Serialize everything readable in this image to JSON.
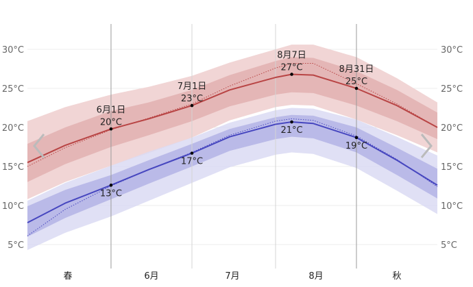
{
  "chart_data": {
    "type": "area",
    "unit": "°C",
    "x_range": [
      "2024-05-01",
      "2024-09-30"
    ],
    "ylim": [
      3,
      33
    ],
    "y_ticks": [
      5,
      10,
      15,
      20,
      25,
      30
    ],
    "y_tick_labels": [
      "5°C",
      "10°C",
      "15°C",
      "20°C",
      "25°C",
      "30°C"
    ],
    "grid": true,
    "x_labels": [
      {
        "label": "春",
        "date": "2024-05-16"
      },
      {
        "label": "6月",
        "date": "2024-06-16"
      },
      {
        "label": "7月",
        "date": "2024-07-16"
      },
      {
        "label": "8月",
        "date": "2024-08-16"
      },
      {
        "label": "秋",
        "date": "2024-09-15"
      }
    ],
    "vertical_lines": [
      {
        "date": "2024-06-01",
        "strong": true
      },
      {
        "date": "2024-07-01",
        "strong": false
      },
      {
        "date": "2024-08-01",
        "strong": false
      },
      {
        "date": "2024-08-31",
        "strong": true
      }
    ],
    "dates": [
      "2024-05-01",
      "2024-05-15",
      "2024-06-01",
      "2024-06-15",
      "2024-07-01",
      "2024-07-15",
      "2024-08-01",
      "2024-08-07",
      "2024-08-15",
      "2024-08-31",
      "2024-09-15",
      "2024-09-30"
    ],
    "high": {
      "mean": [
        15.5,
        17.7,
        19.8,
        21.1,
        22.8,
        24.8,
        26.4,
        26.8,
        26.7,
        25.0,
        22.8,
        20.0
      ],
      "perceived": [
        15.0,
        17.4,
        19.7,
        21.2,
        23.0,
        25.3,
        27.6,
        28.2,
        28.2,
        25.6,
        23.0,
        20.0
      ],
      "p10": [
        10.8,
        13.0,
        15.1,
        16.7,
        18.7,
        20.9,
        22.6,
        22.9,
        22.8,
        21.0,
        19.0,
        16.8
      ],
      "p25": [
        13.0,
        15.3,
        17.5,
        19.0,
        20.8,
        22.7,
        24.2,
        24.5,
        24.4,
        22.8,
        20.8,
        18.5
      ],
      "p75": [
        17.9,
        20.0,
        22.1,
        23.2,
        24.8,
        26.7,
        28.5,
        29.0,
        28.9,
        27.2,
        24.8,
        21.9
      ],
      "p90": [
        20.8,
        22.6,
        24.2,
        25.2,
        26.6,
        28.3,
        30.0,
        30.6,
        30.6,
        29.0,
        26.3,
        23.2
      ]
    },
    "low": {
      "mean": [
        7.8,
        10.3,
        12.6,
        14.6,
        16.7,
        18.8,
        20.4,
        20.7,
        20.5,
        18.7,
        15.8,
        12.6
      ],
      "perceived": [
        6.1,
        9.5,
        12.5,
        14.6,
        16.8,
        19.0,
        20.8,
        21.1,
        20.9,
        18.9,
        15.9,
        12.4
      ],
      "p10": [
        4.3,
        6.5,
        8.6,
        10.6,
        12.9,
        14.9,
        16.5,
        16.8,
        16.6,
        14.8,
        11.9,
        8.9
      ],
      "p25": [
        6.0,
        8.4,
        10.8,
        12.8,
        15.0,
        17.0,
        18.5,
        18.8,
        18.6,
        16.8,
        13.9,
        10.9
      ],
      "p75": [
        9.9,
        12.0,
        13.9,
        15.8,
        17.9,
        19.8,
        21.3,
        21.6,
        21.5,
        20.0,
        17.4,
        14.7
      ],
      "p90": [
        10.6,
        12.9,
        15.1,
        16.9,
        18.7,
        20.6,
        22.2,
        22.5,
        22.4,
        21.0,
        18.8,
        16.4
      ]
    },
    "annotations": [
      {
        "date": "2024-06-01",
        "series": "high",
        "value": 19.8,
        "date_label": "6月1日",
        "value_label": "20°C"
      },
      {
        "date": "2024-06-01",
        "series": "low",
        "value": 12.6,
        "value_label": "13°C"
      },
      {
        "date": "2024-07-01",
        "series": "high",
        "value": 22.8,
        "date_label": "7月1日",
        "value_label": "23°C"
      },
      {
        "date": "2024-07-01",
        "series": "low",
        "value": 16.7,
        "value_label": "17°C"
      },
      {
        "date": "2024-08-07",
        "series": "high",
        "value": 26.8,
        "date_label": "8月7日",
        "value_label": "27°C"
      },
      {
        "date": "2024-08-07",
        "series": "low",
        "value": 20.7,
        "value_label": "21°C"
      },
      {
        "date": "2024-08-31",
        "series": "high",
        "value": 25.0,
        "date_label": "8月31日",
        "value_label": "25°C"
      },
      {
        "date": "2024-08-31",
        "series": "low",
        "value": 18.7,
        "value_label": "19°C"
      }
    ],
    "colors": {
      "high_line": "#b84444",
      "high_band_outer": "#f1d5d5",
      "high_band_inner": "#e4b6b6",
      "low_line": "#4646bf",
      "low_band_outer": "#dadaf3",
      "low_band_inner": "#babae8",
      "grid": "#ececec",
      "vline_strong": "#9a9a9a",
      "vline_light": "#d4d4d4"
    }
  },
  "nav": {
    "prev_icon": "chevron-left-icon",
    "next_icon": "chevron-right-icon"
  }
}
